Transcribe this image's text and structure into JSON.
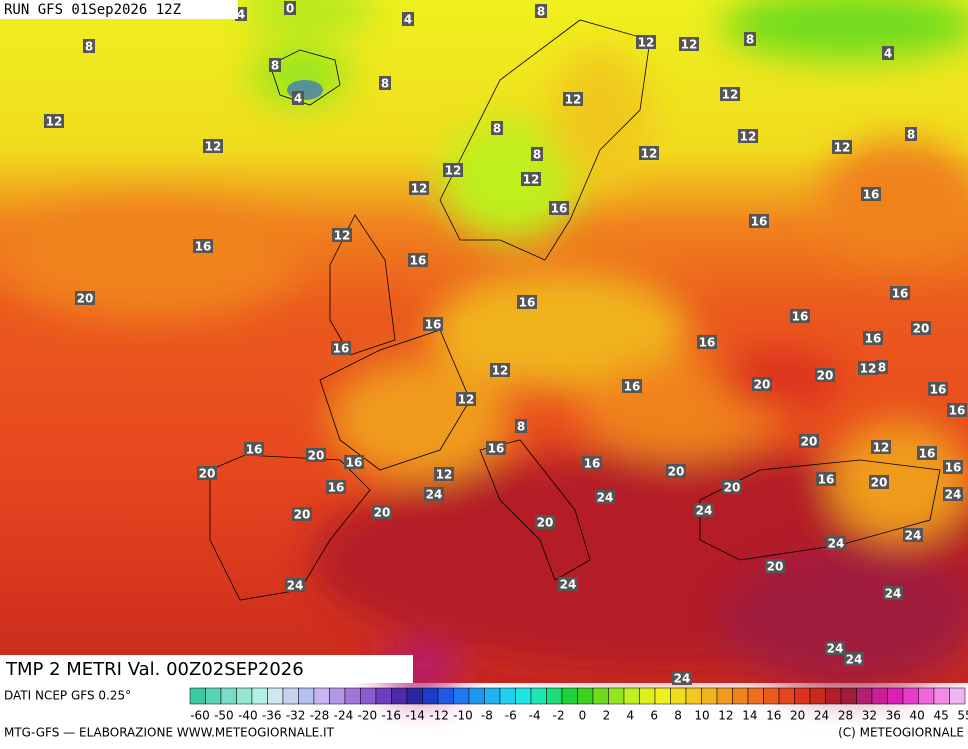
{
  "header": {
    "run": "RUN GFS 01Sep2026 12Z"
  },
  "map": {
    "title": "TMP 2 METRI Val. 00Z02SEP2026",
    "contour_labels": [
      0,
      4,
      4,
      8,
      8,
      12,
      12,
      8,
      4,
      8,
      4,
      8,
      12,
      12,
      12,
      8,
      12,
      8,
      12,
      12,
      12,
      8,
      12,
      12,
      12,
      16,
      16,
      16,
      12,
      16,
      16,
      20,
      16,
      16,
      16,
      16,
      20,
      16,
      16,
      16,
      12,
      12,
      8,
      16,
      20,
      20,
      16,
      12,
      16,
      8,
      20,
      16,
      20,
      16,
      16,
      12,
      16,
      20,
      16,
      20,
      12,
      16,
      16,
      24,
      20,
      16,
      20,
      24,
      24,
      20,
      20,
      24,
      20,
      24,
      24,
      20,
      24,
      24,
      24,
      24,
      24,
      24
    ]
  },
  "legend": {
    "source": "DATI NCEP GFS 0.25°",
    "ticks": [
      -60,
      -50,
      -40,
      -36,
      -32,
      -28,
      -24,
      -20,
      -16,
      -14,
      -12,
      -10,
      -8,
      -6,
      -4,
      -2,
      0,
      2,
      4,
      6,
      8,
      10,
      12,
      14,
      16,
      20,
      24,
      28,
      32,
      36,
      40,
      45,
      55
    ],
    "colors": [
      "#3cc8a0",
      "#5ad2b4",
      "#78dcc8",
      "#96e6d2",
      "#b4f0e6",
      "#d2e6f0",
      "#c8d2f0",
      "#b4bef0",
      "#c8b4f0",
      "#b496e6",
      "#a078dc",
      "#8c5ad2",
      "#6e3cbe",
      "#5028aa",
      "#2828a0",
      "#1e3cc8",
      "#1e5ae6",
      "#1e78f0",
      "#1e96f0",
      "#1eb4f0",
      "#1ed2f0",
      "#1ee6e6",
      "#1ee6b4",
      "#1edc78",
      "#1ed23c",
      "#3cd21e",
      "#6edc1e",
      "#96e61e",
      "#bef01e",
      "#dcf01e",
      "#f0f01e",
      "#f0dc1e",
      "#f0c81e",
      "#f0b41e",
      "#f09b1e",
      "#f0821e",
      "#f06e1e",
      "#eb5a1e",
      "#e6461e",
      "#dc321e",
      "#c8281e",
      "#b41e28",
      "#a01e3c",
      "#b41e6e",
      "#c81e96",
      "#dc1eb4",
      "#e63cc8",
      "#f064dc",
      "#f08ce6",
      "#f0b4f0"
    ]
  },
  "footer": {
    "left": "MTG-GFS — ELABORAZIONE WWW.METEOGIORNALE.IT",
    "right": "(C) METEOGIORNALE"
  }
}
